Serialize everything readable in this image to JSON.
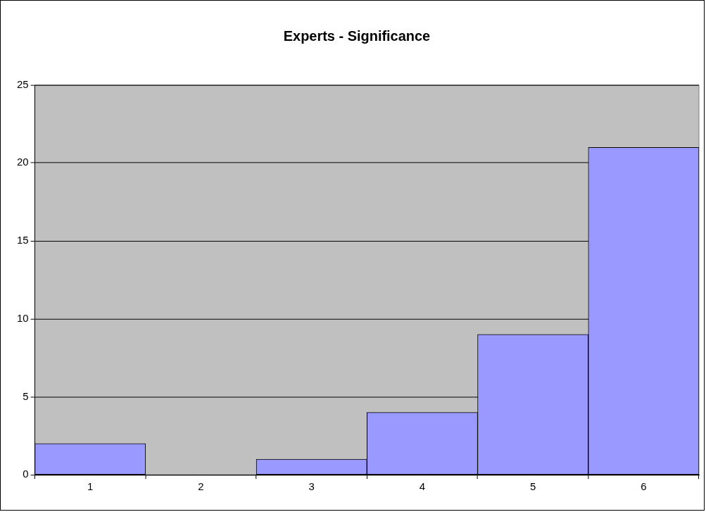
{
  "chart_data": {
    "type": "bar",
    "title": "Experts - Significance",
    "categories": [
      "1",
      "2",
      "3",
      "4",
      "5",
      "6"
    ],
    "values": [
      2,
      0,
      1,
      4,
      9,
      21
    ],
    "color": "#9999ff",
    "ylim": [
      0,
      25
    ],
    "yticks": [
      0,
      5,
      10,
      15,
      20,
      25
    ],
    "grid": "y",
    "legend": false
  }
}
